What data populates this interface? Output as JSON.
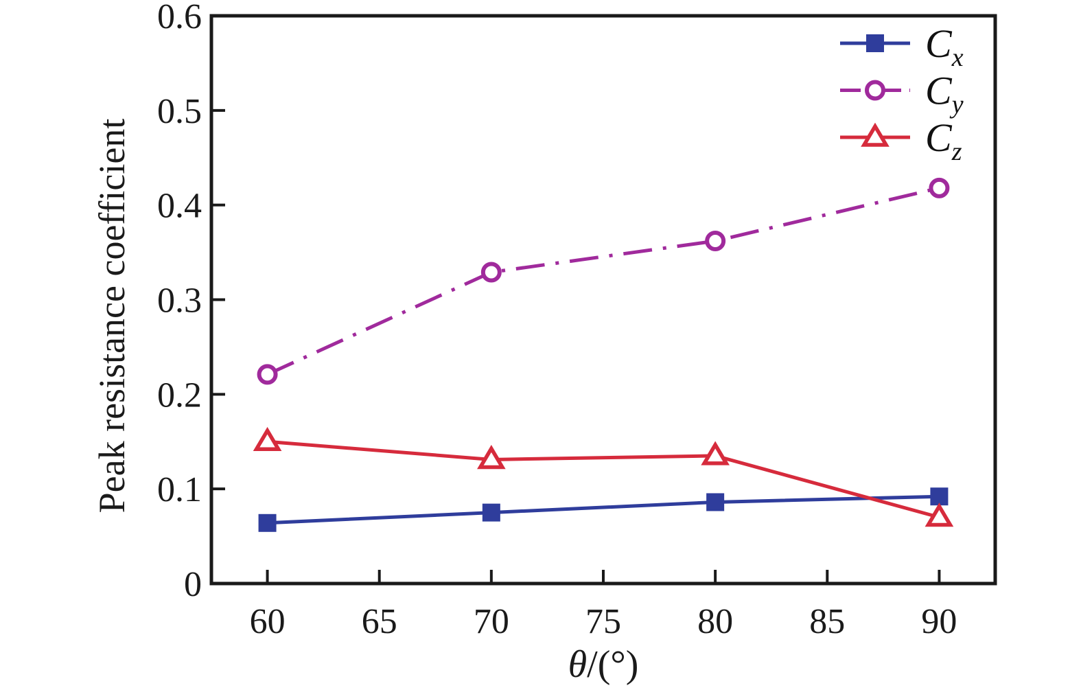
{
  "page": {
    "background": "#ffffff"
  },
  "chart_data": {
    "type": "line",
    "title": "",
    "xlabel": "θ/(°)",
    "xlabel_symbol": "θ",
    "xlabel_rest": "/(°)",
    "ylabel": "Peak resistance coefficient",
    "x": [
      60,
      70,
      80,
      90
    ],
    "x_ticks": [
      60,
      65,
      70,
      75,
      80,
      85,
      90
    ],
    "y_ticks": [
      0,
      0.1,
      0.2,
      0.3,
      0.4,
      0.5,
      0.6
    ],
    "y_tick_labels": [
      "0",
      "0.1",
      "0.2",
      "0.3",
      "0.4",
      "0.5",
      "0.6"
    ],
    "xlim": [
      57.5,
      92.5
    ],
    "ylim": [
      0,
      0.6
    ],
    "grid": false,
    "legend_position": "top-right-inside",
    "axis_color": "#1a1a1a",
    "series": [
      {
        "name": "Cx",
        "label": "C",
        "subscript": "x",
        "color": "#2f3d9c",
        "line_style": "solid",
        "marker": "filled-square",
        "values": [
          0.064,
          0.075,
          0.086,
          0.092
        ]
      },
      {
        "name": "Cy",
        "label": "C",
        "subscript": "y",
        "color": "#a02a9c",
        "line_style": "dash-dot",
        "marker": "open-circle",
        "values": [
          0.221,
          0.329,
          0.362,
          0.418
        ]
      },
      {
        "name": "Cz",
        "label": "C",
        "subscript": "z",
        "color": "#d62b3c",
        "line_style": "solid",
        "marker": "open-triangle",
        "values": [
          0.15,
          0.131,
          0.135,
          0.07
        ]
      }
    ]
  }
}
